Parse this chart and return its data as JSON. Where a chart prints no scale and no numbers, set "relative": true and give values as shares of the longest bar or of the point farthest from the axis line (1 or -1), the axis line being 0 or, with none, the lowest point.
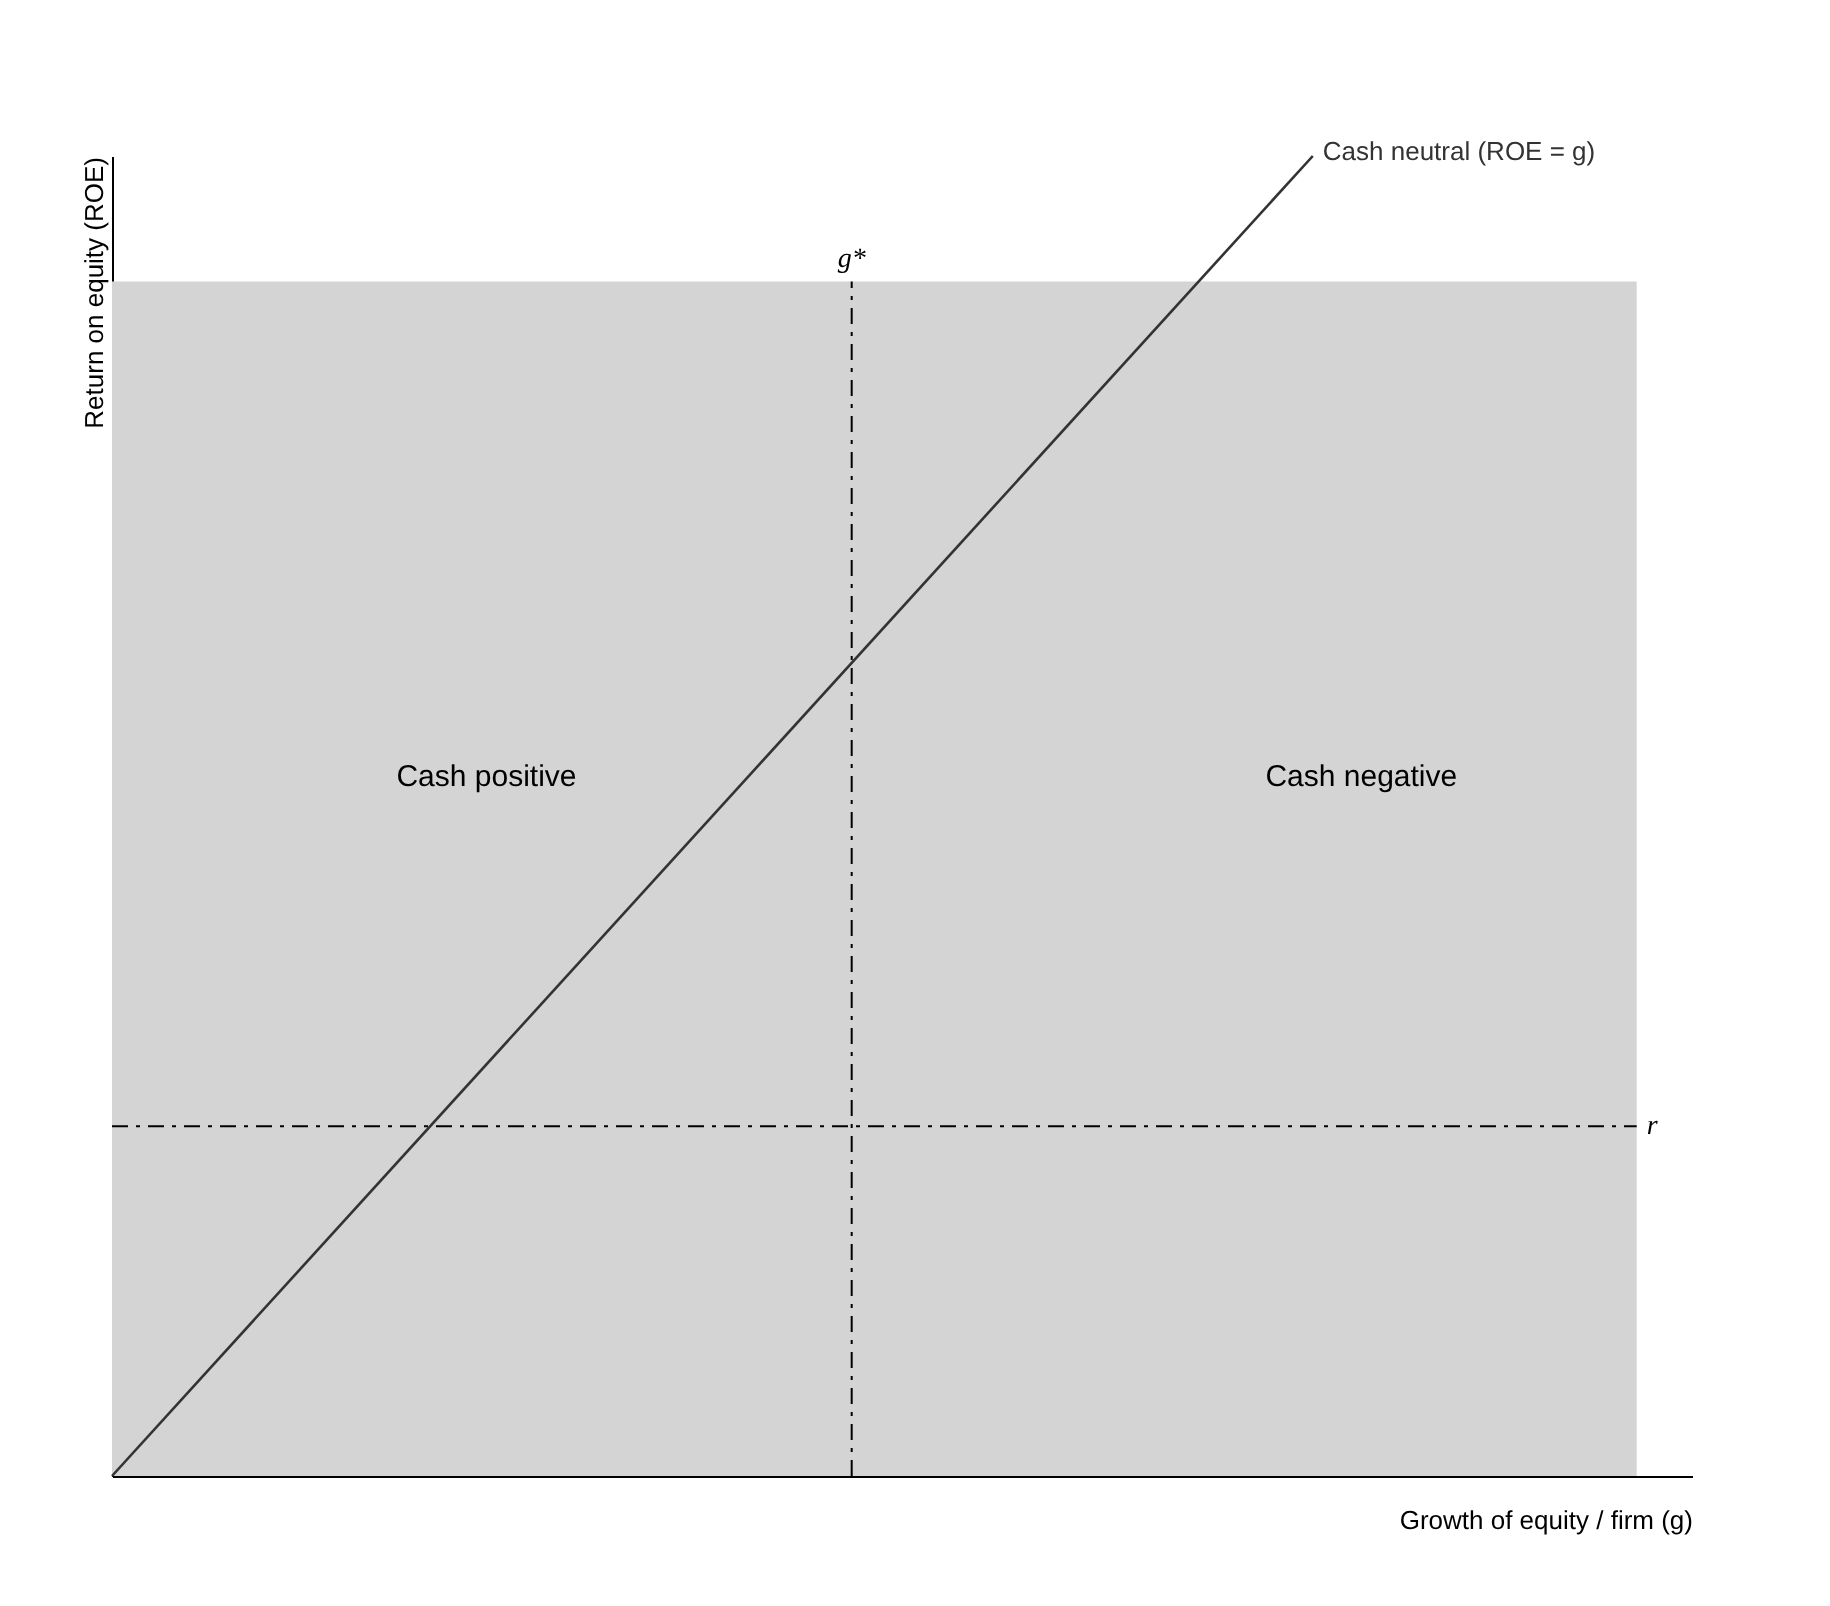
{
  "chart_data": {
    "type": "line",
    "relative": true,
    "xlabel": "Growth of equity / firm (g)",
    "ylabel": "Return on equity (ROE)",
    "categories": [
      null,
      null
    ],
    "grid": false,
    "legend": false,
    "series": [
      {
        "name": "Cash neutral (ROE = g)",
        "color": "#333333",
        "values": [
          0,
          1
        ]
      }
    ],
    "ref_lines": [
      {
        "axis": "y",
        "value": 0.265,
        "label": "r",
        "color": "#000000",
        "line_style": "dashed"
      }
    ],
    "bands": [
      {
        "axis": "y",
        "from": 0,
        "to": 0.905,
        "color": "#d4d4d4"
      }
    ],
    "annotations": [
      "Cash positive",
      "Cash negative",
      "g*"
    ]
  }
}
